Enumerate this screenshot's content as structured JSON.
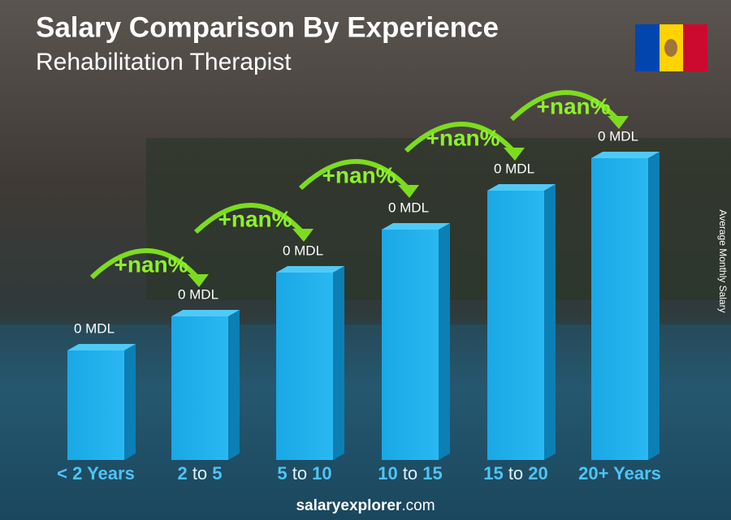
{
  "header": {
    "title": "Salary Comparison By Experience",
    "subtitle": "Rehabilitation Therapist"
  },
  "axis_label": "Average Monthly Salary",
  "bars": [
    {
      "label": [
        "< 2 Years"
      ],
      "value_label": "0 MDL"
    },
    {
      "label": [
        "2",
        "to",
        "5"
      ],
      "value_label": "0 MDL"
    },
    {
      "label": [
        "5",
        "to",
        "10"
      ],
      "value_label": "0 MDL"
    },
    {
      "label": [
        "10",
        "to",
        "15"
      ],
      "value_label": "0 MDL"
    },
    {
      "label": [
        "15",
        "to",
        "20"
      ],
      "value_label": "0 MDL"
    },
    {
      "label": [
        "20+ Years"
      ],
      "value_label": "0 MDL"
    }
  ],
  "changes": [
    "+nan%",
    "+nan%",
    "+nan%",
    "+nan%",
    "+nan%"
  ],
  "footer": [
    "salary",
    "explorer",
    ".com"
  ]
}
